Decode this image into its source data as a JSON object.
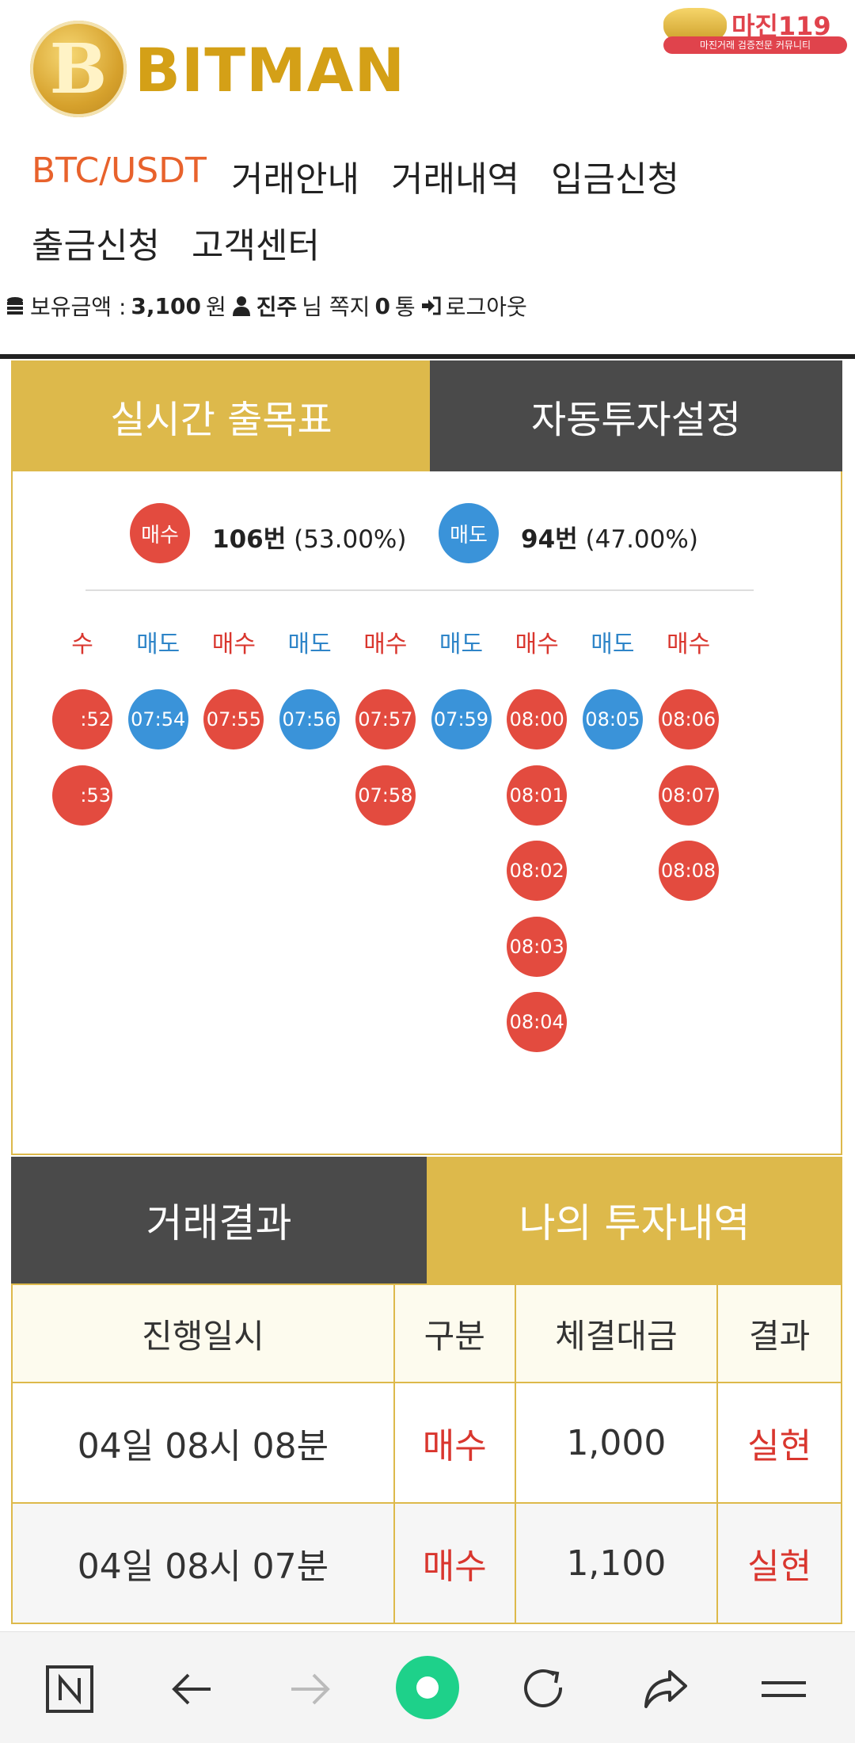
{
  "header": {
    "logo_letter": "B",
    "logo_text": "BITMAN",
    "badge": {
      "title": "마진119",
      "subtitle": "마진거래 검증전문 커뮤니티"
    }
  },
  "nav": {
    "items": [
      "BTC/USDT",
      "거래안내",
      "거래내역",
      "입금신청",
      "출금신청",
      "고객센터"
    ]
  },
  "userbar": {
    "balance_label": "보유금액 :",
    "balance_value": "3,100",
    "balance_unit": "원",
    "user_name": "진주",
    "user_suffix": "님 쪽지",
    "message_count": "0",
    "message_unit": "통",
    "logout": "로그아웃"
  },
  "panel1": {
    "tabs": [
      "실시간 출목표",
      "자동투자설정"
    ],
    "stats": {
      "buy_label": "매수",
      "buy_count": "106번",
      "buy_pct": "(53.00%)",
      "sell_label": "매도",
      "sell_count": "94번",
      "sell_pct": "(47.00%)"
    },
    "columns": [
      {
        "head": "수",
        "type": "buy",
        "times": [
          ":52",
          ":53"
        ]
      },
      {
        "head": "매도",
        "type": "sell",
        "times": [
          "07:54"
        ]
      },
      {
        "head": "매수",
        "type": "buy",
        "times": [
          "07:55"
        ]
      },
      {
        "head": "매도",
        "type": "sell",
        "times": [
          "07:56"
        ]
      },
      {
        "head": "매수",
        "type": "buy",
        "times": [
          "07:57",
          "07:58"
        ]
      },
      {
        "head": "매도",
        "type": "sell",
        "times": [
          "07:59"
        ]
      },
      {
        "head": "매수",
        "type": "buy",
        "times": [
          "08:00",
          "08:01",
          "08:02",
          "08:03",
          "08:04"
        ]
      },
      {
        "head": "매도",
        "type": "sell",
        "times": [
          "08:05"
        ]
      },
      {
        "head": "매수",
        "type": "buy",
        "times": [
          "08:06",
          "08:07",
          "08:08"
        ]
      }
    ]
  },
  "panel2": {
    "tabs": [
      "거래결과",
      "나의 투자내역"
    ],
    "table": {
      "headers": [
        "진행일시",
        "구분",
        "체결대금",
        "결과"
      ],
      "rows": [
        [
          "04일 08시 08분",
          "매수",
          "1,000",
          "실현"
        ],
        [
          "04일 08시 07분",
          "매수",
          "1,100",
          "실현"
        ]
      ]
    }
  },
  "colors": {
    "gold": "#ddb94b",
    "dark": "#4a4a4a",
    "buy_red": "#e34b3f",
    "sell_blue": "#3a93d9",
    "accent_orange": "#e8622c"
  },
  "bottom_bar": {
    "icons": [
      "naver-n-icon",
      "back-arrow-icon",
      "forward-arrow-icon",
      "home-circle-icon",
      "refresh-icon",
      "share-icon",
      "menu-icon"
    ]
  }
}
